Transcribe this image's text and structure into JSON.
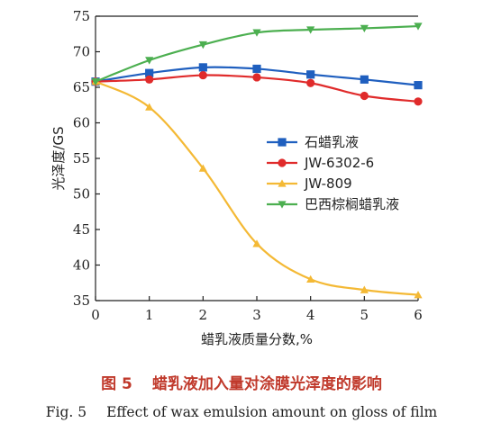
{
  "chart_data": {
    "type": "line",
    "x": [
      0,
      1,
      2,
      3,
      4,
      5,
      6
    ],
    "xlabel": "蜡乳液质量分数,%",
    "ylabel": "光泽度/GS",
    "xlim": [
      0,
      6
    ],
    "ylim": [
      35,
      75
    ],
    "xticks": [
      "0",
      "1",
      "2",
      "3",
      "4",
      "5",
      "6"
    ],
    "yticks": [
      "35",
      "40",
      "45",
      "50",
      "55",
      "60",
      "65",
      "70",
      "75"
    ],
    "legend_position": "right",
    "grid": false,
    "series": [
      {
        "name": "石蜡乳液",
        "color": "#1f5fbf",
        "marker": "square",
        "values": [
          65.8,
          67.0,
          67.8,
          67.6,
          66.8,
          66.1,
          65.3
        ]
      },
      {
        "name": "JW-6302-6",
        "color": "#e02b2b",
        "marker": "circle",
        "values": [
          65.8,
          66.1,
          66.7,
          66.4,
          65.6,
          63.8,
          63.0
        ]
      },
      {
        "name": "JW-809",
        "color": "#f4b935",
        "marker": "triangle-up",
        "values": [
          65.8,
          62.2,
          53.6,
          43.0,
          38.0,
          36.5,
          35.8
        ]
      },
      {
        "name": "巴西棕榈蜡乳液",
        "color": "#4caf50",
        "marker": "triangle-down",
        "values": [
          65.8,
          68.8,
          71.0,
          72.7,
          73.1,
          73.3,
          73.6
        ]
      }
    ]
  },
  "caption": {
    "cn_number": "图 5",
    "cn_text": "蜡乳液加入量对涂膜光泽度的影响",
    "en_number": "Fig. 5",
    "en_text": "Effect of wax emulsion amount on gloss of film"
  }
}
